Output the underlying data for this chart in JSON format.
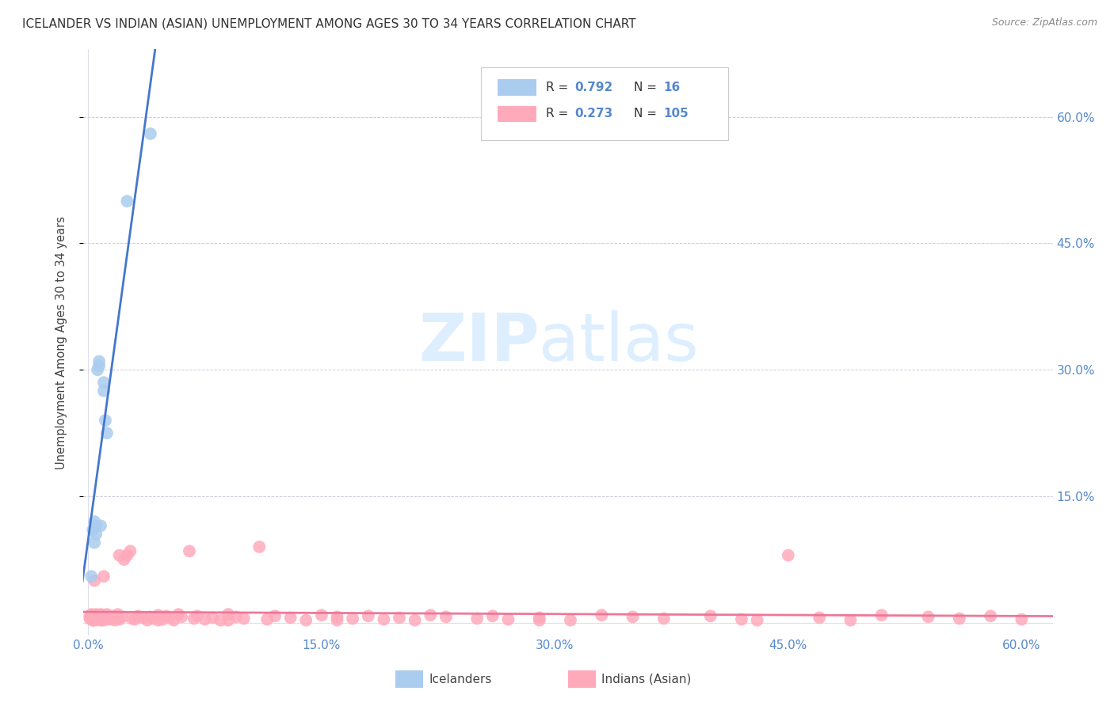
{
  "title": "ICELANDER VS INDIAN (ASIAN) UNEMPLOYMENT AMONG AGES 30 TO 34 YEARS CORRELATION CHART",
  "source": "Source: ZipAtlas.com",
  "ylabel": "Unemployment Among Ages 30 to 34 years",
  "xlim": [
    -0.003,
    0.62
  ],
  "ylim": [
    -0.015,
    0.68
  ],
  "xtick_values": [
    0.0,
    0.15,
    0.3,
    0.45,
    0.6
  ],
  "xtick_labels": [
    "0.0%",
    "15.0%",
    "30.0%",
    "45.0%",
    "60.0%"
  ],
  "ytick_values": [
    0.15,
    0.3,
    0.45,
    0.6
  ],
  "ytick_labels": [
    "15.0%",
    "30.0%",
    "45.0%",
    "60.0%"
  ],
  "icelander_color": "#AACCEE",
  "indian_color": "#FFAABB",
  "icelander_line_color": "#4477CC",
  "indian_line_color": "#EE7799",
  "tick_color": "#5588CC",
  "grid_color": "#CCCCDD",
  "watermark_zip": "ZIP",
  "watermark_atlas": "atlas",
  "watermark_color_zip": "#DDEEFF",
  "watermark_color_atlas": "#DDEEFF",
  "legend_border_color": "#CCCCCC",
  "icelander_R": "0.792",
  "icelander_N": "16",
  "indian_R": "0.273",
  "indian_N": "105",
  "icelander_x": [
    0.002,
    0.003,
    0.004,
    0.004,
    0.005,
    0.005,
    0.006,
    0.007,
    0.007,
    0.008,
    0.01,
    0.01,
    0.011,
    0.012,
    0.025,
    0.04
  ],
  "icelander_y": [
    0.055,
    0.11,
    0.12,
    0.095,
    0.115,
    0.105,
    0.3,
    0.31,
    0.305,
    0.115,
    0.275,
    0.285,
    0.24,
    0.225,
    0.5,
    0.58
  ],
  "indian_x": [
    0.001,
    0.001,
    0.002,
    0.002,
    0.002,
    0.003,
    0.003,
    0.003,
    0.004,
    0.004,
    0.004,
    0.005,
    0.005,
    0.005,
    0.006,
    0.006,
    0.006,
    0.007,
    0.007,
    0.007,
    0.008,
    0.008,
    0.009,
    0.009,
    0.01,
    0.01,
    0.01,
    0.012,
    0.012,
    0.013,
    0.014,
    0.015,
    0.016,
    0.017,
    0.018,
    0.019,
    0.02,
    0.022,
    0.023,
    0.025,
    0.027,
    0.028,
    0.03,
    0.032,
    0.035,
    0.038,
    0.04,
    0.042,
    0.045,
    0.048,
    0.05,
    0.052,
    0.055,
    0.058,
    0.06,
    0.065,
    0.068,
    0.07,
    0.075,
    0.08,
    0.085,
    0.09,
    0.095,
    0.1,
    0.11,
    0.115,
    0.12,
    0.13,
    0.14,
    0.15,
    0.16,
    0.17,
    0.18,
    0.19,
    0.2,
    0.21,
    0.22,
    0.23,
    0.25,
    0.26,
    0.27,
    0.29,
    0.31,
    0.33,
    0.35,
    0.37,
    0.4,
    0.42,
    0.45,
    0.47,
    0.49,
    0.51,
    0.54,
    0.56,
    0.58,
    0.6,
    0.003,
    0.004,
    0.01,
    0.02,
    0.045,
    0.09,
    0.16,
    0.29,
    0.43
  ],
  "indian_y": [
    0.005,
    0.008,
    0.004,
    0.006,
    0.01,
    0.003,
    0.007,
    0.009,
    0.005,
    0.008,
    0.004,
    0.006,
    0.01,
    0.003,
    0.007,
    0.004,
    0.009,
    0.005,
    0.008,
    0.006,
    0.003,
    0.01,
    0.004,
    0.007,
    0.005,
    0.009,
    0.003,
    0.006,
    0.01,
    0.004,
    0.007,
    0.005,
    0.008,
    0.003,
    0.006,
    0.01,
    0.004,
    0.007,
    0.075,
    0.08,
    0.085,
    0.005,
    0.004,
    0.008,
    0.006,
    0.003,
    0.007,
    0.005,
    0.009,
    0.004,
    0.008,
    0.006,
    0.003,
    0.01,
    0.007,
    0.085,
    0.005,
    0.008,
    0.004,
    0.006,
    0.003,
    0.01,
    0.007,
    0.005,
    0.09,
    0.004,
    0.008,
    0.006,
    0.003,
    0.009,
    0.007,
    0.005,
    0.008,
    0.004,
    0.006,
    0.003,
    0.009,
    0.007,
    0.005,
    0.008,
    0.004,
    0.006,
    0.003,
    0.009,
    0.007,
    0.005,
    0.008,
    0.004,
    0.08,
    0.006,
    0.003,
    0.009,
    0.007,
    0.005,
    0.008,
    0.004,
    0.003,
    0.05,
    0.055,
    0.08,
    0.003,
    0.003,
    0.003,
    0.003,
    0.003
  ]
}
